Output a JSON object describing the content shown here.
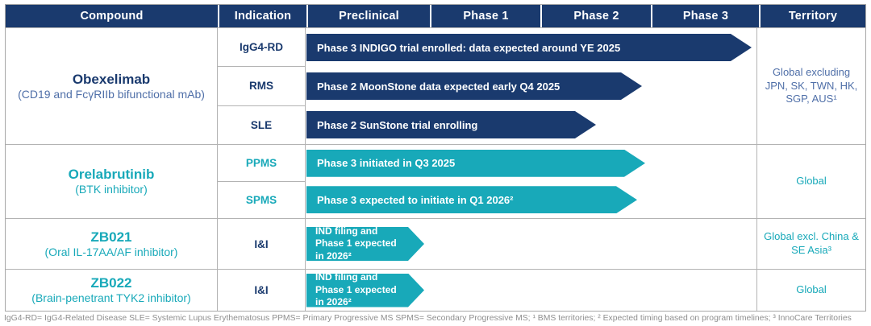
{
  "colors": {
    "navy": "#1a3a6e",
    "teal": "#18a9b9",
    "blue_detail_text": "#4f6fa8",
    "footnote_gray": "#8f8f8f",
    "border_gray": "#b3b3b3"
  },
  "header": {
    "columns": [
      "Compound",
      "Indication",
      "Preclinical",
      "Phase 1",
      "Phase 2",
      "Phase 3",
      "Territory"
    ]
  },
  "groups": [
    {
      "compound": "Obexelimab",
      "compound_detail": "(CD19 and FcγRIIb bifunctional mAb)",
      "territory": "Global excluding JPN, SK, TWN, HK, SGP, AUS¹",
      "entries": [
        {
          "indication": "IgG4-RD",
          "status": "Phase 3 INDIGO trial enrolled: data expected around YE 2025",
          "reach": "Phase 3"
        },
        {
          "indication": "RMS",
          "status": "Phase 2 MoonStone data expected early Q4 2025",
          "reach": "Phase 2"
        },
        {
          "indication": "SLE",
          "status": "Phase 2 SunStone trial enrolling",
          "reach": "Phase 2"
        }
      ]
    },
    {
      "compound": "Orelabrutinib",
      "compound_detail": "(BTK inhibitor)",
      "territory": "Global",
      "entries": [
        {
          "indication": "PPMS",
          "status": "Phase 3 initiated in Q3 2025",
          "reach": "Phase 2/3"
        },
        {
          "indication": "SPMS",
          "status": "Phase 3 expected to initiate in Q1 2026²",
          "reach": "Phase 2/3"
        }
      ]
    },
    {
      "compound": "ZB021",
      "compound_detail": "(Oral IL-17AA/AF inhibitor)",
      "territory": "Global excl. China & SE Asia³",
      "entries": [
        {
          "indication": "I&I",
          "status": "IND filing and Phase 1 expected in 2026²",
          "reach": "Preclinical"
        }
      ]
    },
    {
      "compound": "ZB022",
      "compound_detail": "(Brain-penetrant TYK2 inhibitor)",
      "territory": "Global",
      "entries": [
        {
          "indication": "I&I",
          "status": "IND filing and Phase 1 expected in 2026²",
          "reach": "Preclinical"
        }
      ]
    }
  ],
  "footnote": "IgG4-RD= IgG4-Related Disease  SLE= Systemic Lupus Erythematosus  PPMS= Primary Progressive MS SPMS= Secondary Progressive MS; ¹ BMS territories; ² Expected timing based on program timelines; ³ InnoCare Territories"
}
